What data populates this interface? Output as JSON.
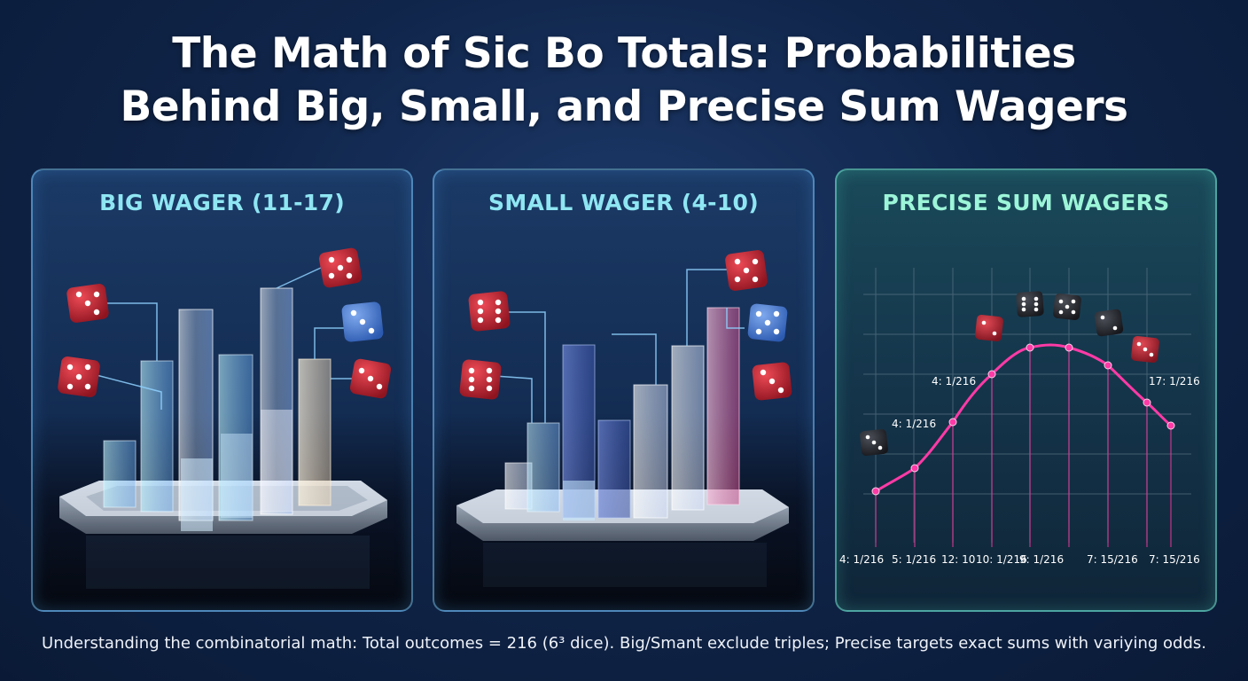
{
  "title": {
    "line1": "The Math of Sic Bo Totals: Probabilities",
    "line2": "Behind Big, Small, and Precise Sum Wagers"
  },
  "panels": {
    "big": {
      "heading": "BIG WAGER (11-17)"
    },
    "small": {
      "heading": "SMALL WAGER (4-10)"
    },
    "precise": {
      "heading": "PRECISE SUM WAGERS",
      "point_labels": [
        "4: 1/216",
        "4: 1/216",
        "17: 1/216"
      ],
      "axis_labels": [
        "4: 1/216",
        "5: 1/216",
        "12: 10",
        "10: 1/216",
        "9: 1/216",
        "7: 15/216",
        "7: 15/216"
      ],
      "curve_color": "#ff3aa6"
    }
  },
  "footer": "Understanding the combinatorial math: Total outcomes = 216 (6³ dice). Big/Smant exclude triples; Precise targets exact sums with variying odds.",
  "colors": {
    "die_red": "#c8202e",
    "die_blue": "#4a7fd0",
    "die_dark": "#2a2c33",
    "accent_cyan": "#8fe6f3",
    "accent_mint": "#9cf5d8"
  }
}
